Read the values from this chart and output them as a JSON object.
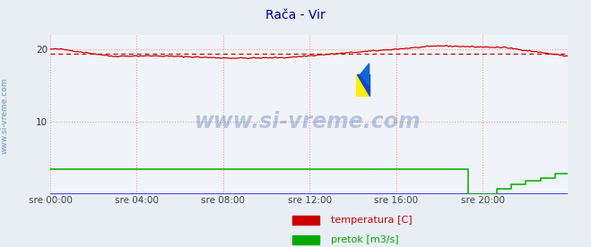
{
  "title": "Rača - Vir",
  "title_color": "#000080",
  "title_fontsize": 10,
  "outer_bg_color": "#e8eef4",
  "plot_bg_color": "#f0f4f8",
  "bottom_bg_color": "#eef2f8",
  "xlabel": "",
  "ylabel": "",
  "xlim": [
    0,
    287
  ],
  "ylim": [
    0,
    22
  ],
  "yticks": [
    10,
    20
  ],
  "xtick_labels": [
    "sre 00:00",
    "sre 04:00",
    "sre 08:00",
    "sre 12:00",
    "sre 16:00",
    "sre 20:00"
  ],
  "xtick_positions": [
    0,
    48,
    96,
    144,
    192,
    240
  ],
  "grid_color": "#ff9999",
  "temp_color": "#cc0000",
  "flow_color": "#00aa00",
  "avg_line_color": "#cc0000",
  "avg_line_value": 19.3,
  "watermark_text": "www.si-vreme.com",
  "watermark_color": "#3355aa",
  "legend_labels": [
    "temperatura [C]",
    "pretok [m3/s]"
  ],
  "legend_colors": [
    "#cc0000",
    "#00aa00"
  ],
  "side_text": "www.si-vreme.com",
  "side_text_color": "#4477aa",
  "arrow_color": "#880000",
  "flow_max_display": 4.0,
  "flow_steps": [
    232,
    240,
    248,
    256,
    264,
    272,
    280,
    288
  ],
  "flow_vals": [
    0.0,
    0.0,
    0.7,
    1.3,
    1.8,
    2.2,
    2.8,
    3.4
  ]
}
